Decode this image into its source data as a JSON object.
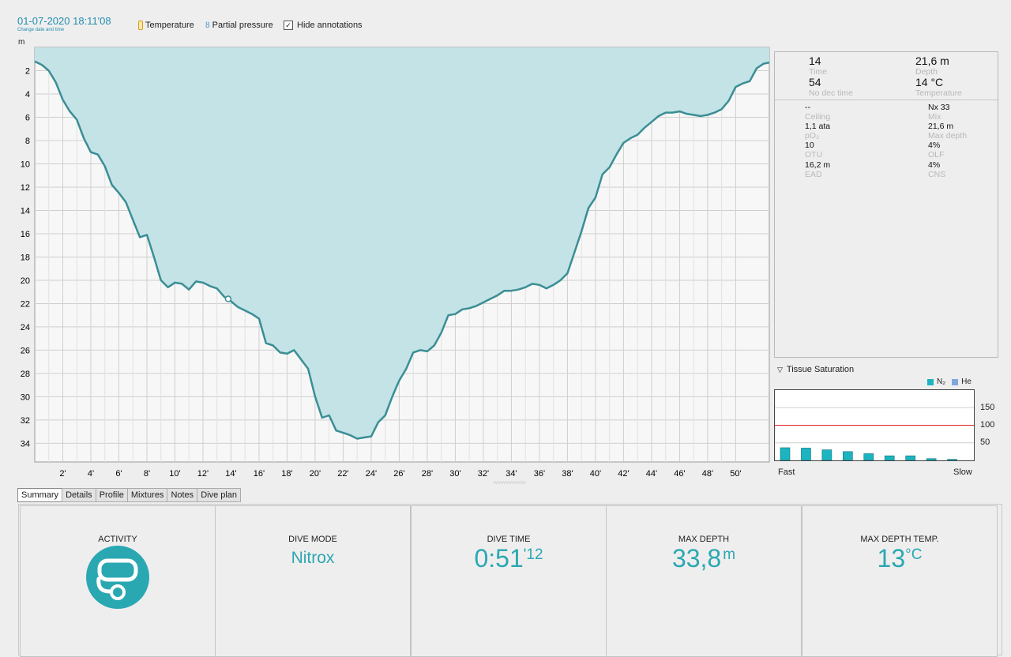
{
  "header": {
    "datetime": "01-07-2020 18:11'08",
    "change_label": "Change date and time",
    "temperature_label": "Temperature",
    "partial_pressure_label": "Partial pressure",
    "hide_annotations_label": "Hide annotations",
    "hide_annotations_checked": true
  },
  "colors": {
    "accent": "#29a8b2",
    "profile_fill": "#c3e3e7",
    "profile_line": "#3a8e94",
    "link": "#1e8fb0"
  },
  "chart_data": {
    "type": "area",
    "ylabel": "m",
    "y_reversed": true,
    "yticks": [
      2,
      4,
      6,
      8,
      10,
      12,
      14,
      16,
      18,
      20,
      22,
      24,
      26,
      28,
      30,
      32,
      34
    ],
    "xticks": [
      "2'",
      "4'",
      "6'",
      "8'",
      "10'",
      "12'",
      "14'",
      "16'",
      "18'",
      "20'",
      "22'",
      "24'",
      "26'",
      "28'",
      "30'",
      "32'",
      "34'",
      "36'",
      "38'",
      "40'",
      "42'",
      "44'",
      "46'",
      "48'",
      "50'"
    ],
    "xlim": [
      0,
      52.4
    ],
    "ylim": [
      0,
      35.6
    ],
    "grid": true,
    "marker": {
      "x": 13.8,
      "y": 21.6
    },
    "x": [
      0,
      0.5,
      1,
      1.5,
      2,
      2.5,
      3,
      3.5,
      4,
      4.5,
      5,
      5.5,
      6,
      6.5,
      7,
      7.5,
      8,
      8.5,
      9,
      9.5,
      10,
      10.5,
      11,
      11.5,
      12,
      12.5,
      13,
      13.5,
      14,
      14.5,
      15,
      15.5,
      16,
      16.5,
      17,
      17.5,
      18,
      18.5,
      19,
      19.5,
      20,
      20.5,
      21,
      21.5,
      22,
      22.5,
      23,
      23.5,
      24,
      24.5,
      25,
      25.5,
      26,
      26.5,
      27,
      27.5,
      28,
      28.5,
      29,
      29.5,
      30,
      30.5,
      31,
      31.5,
      32,
      32.5,
      33,
      33.5,
      34,
      34.5,
      35,
      35.5,
      36,
      36.5,
      37,
      37.5,
      38,
      38.5,
      39,
      39.5,
      40,
      40.5,
      41,
      41.5,
      42,
      42.5,
      43,
      43.5,
      44,
      44.5,
      45,
      45.5,
      46,
      46.5,
      47,
      47.5,
      48,
      48.5,
      49,
      49.5,
      50,
      50.5,
      51,
      51.5,
      52,
      52.4
    ],
    "values": [
      1.2,
      1.5,
      2.0,
      3.0,
      4.5,
      5.5,
      6.2,
      7.8,
      9.0,
      9.2,
      10.2,
      11.8,
      12.5,
      13.3,
      14.8,
      16.3,
      16.1,
      18.0,
      20.0,
      20.6,
      20.2,
      20.3,
      20.8,
      20.1,
      20.2,
      20.5,
      20.7,
      21.4,
      21.8,
      22.3,
      22.6,
      22.9,
      23.3,
      25.4,
      25.6,
      26.2,
      26.3,
      26.0,
      26.8,
      27.6,
      30.0,
      31.8,
      31.6,
      32.9,
      33.1,
      33.3,
      33.6,
      33.5,
      33.4,
      32.2,
      31.6,
      30.0,
      28.6,
      27.6,
      26.2,
      26.0,
      26.1,
      25.6,
      24.5,
      23.0,
      22.9,
      22.5,
      22.4,
      22.2,
      21.9,
      21.6,
      21.3,
      20.9,
      20.9,
      20.8,
      20.6,
      20.3,
      20.4,
      20.7,
      20.4,
      20.0,
      19.4,
      17.6,
      15.8,
      13.8,
      12.9,
      10.9,
      10.3,
      9.2,
      8.2,
      7.8,
      7.5,
      6.9,
      6.4,
      5.9,
      5.6,
      5.6,
      5.5,
      5.7,
      5.8,
      5.9,
      5.8,
      5.6,
      5.3,
      4.6,
      3.4,
      3.1,
      2.9,
      1.8,
      1.4,
      1.3
    ]
  },
  "info": {
    "time_value": "14",
    "time_label": "Time",
    "depth_value": "21,6 m",
    "depth_label": "Depth",
    "nodec_value": "54",
    "nodec_label": "No dec time",
    "temp_value": "14 °C",
    "temp_label": "Temperature",
    "ceiling_value": "--",
    "ceiling_label": "Ceiling",
    "mix_value": "Nx 33",
    "mix_label": "Mix",
    "po2_value": "1,1 ata",
    "po2_label": "pO₂",
    "maxdepth_value": "21,6 m",
    "maxdepth_label": "Max depth",
    "otu_value": "10",
    "otu_label": "OTU",
    "olf_value": "4%",
    "olf_label": "OLF",
    "ead_value": "16,2 m",
    "ead_label": "EAD",
    "cns_value": "4%",
    "cns_label": "CNS"
  },
  "tissue": {
    "title": "Tissue Saturation",
    "legend_n2": "N₂",
    "legend_he": "He",
    "yticks": [
      "150",
      "100",
      "50"
    ],
    "fast_label": "Fast",
    "slow_label": "Slow",
    "threshold": 100,
    "ymax": 200,
    "n2_values": [
      36,
      35,
      30,
      25,
      19,
      13,
      13,
      5,
      3
    ],
    "he_values": [
      0,
      0,
      0,
      0,
      0,
      0,
      0,
      0,
      0
    ]
  },
  "tabs": [
    "Summary",
    "Details",
    "Profile",
    "Mixtures",
    "Notes",
    "Dive plan"
  ],
  "summary": {
    "activity_title": "ACTIVITY",
    "mode_title": "DIVE MODE",
    "mode_value": "Nitrox",
    "time_title": "DIVE TIME",
    "time_value": "0:51",
    "time_sec": "'12",
    "depth_title": "MAX DEPTH",
    "depth_value": "33,8",
    "depth_unit": "m",
    "temp_title": "MAX DEPTH TEMP.",
    "temp_value": "13",
    "temp_unit": "°C"
  }
}
